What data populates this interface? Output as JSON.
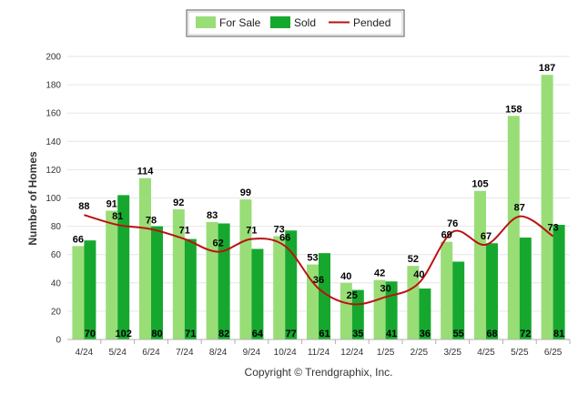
{
  "chart_data": {
    "type": "bar",
    "ylabel": "Number of Homes",
    "ylim": [
      0,
      200
    ],
    "yticks": [
      0,
      20,
      40,
      60,
      80,
      100,
      120,
      140,
      160,
      180,
      200
    ],
    "categories": [
      "4/24",
      "5/24",
      "6/24",
      "7/24",
      "8/24",
      "9/24",
      "10/24",
      "11/24",
      "12/24",
      "1/25",
      "2/25",
      "3/25",
      "4/25",
      "5/25",
      "6/25"
    ],
    "series": [
      {
        "name": "For Sale",
        "kind": "bar",
        "color": "#99dd77",
        "values": [
          66,
          91,
          114,
          92,
          83,
          99,
          73,
          53,
          40,
          42,
          52,
          69,
          105,
          158,
          187
        ]
      },
      {
        "name": "Sold",
        "kind": "bar",
        "color": "#16a82e",
        "values": [
          70,
          102,
          80,
          71,
          82,
          64,
          77,
          61,
          35,
          41,
          36,
          55,
          68,
          72,
          81
        ]
      },
      {
        "name": "Pended",
        "kind": "line",
        "color": "#bb1111",
        "values": [
          88,
          81,
          78,
          71,
          62,
          71,
          66,
          36,
          25,
          30,
          40,
          76,
          67,
          87,
          73
        ]
      }
    ],
    "legend_position": "top-center",
    "grid": true
  },
  "footer": {
    "copyright": "Copyright © Trendgraphix, Inc."
  }
}
